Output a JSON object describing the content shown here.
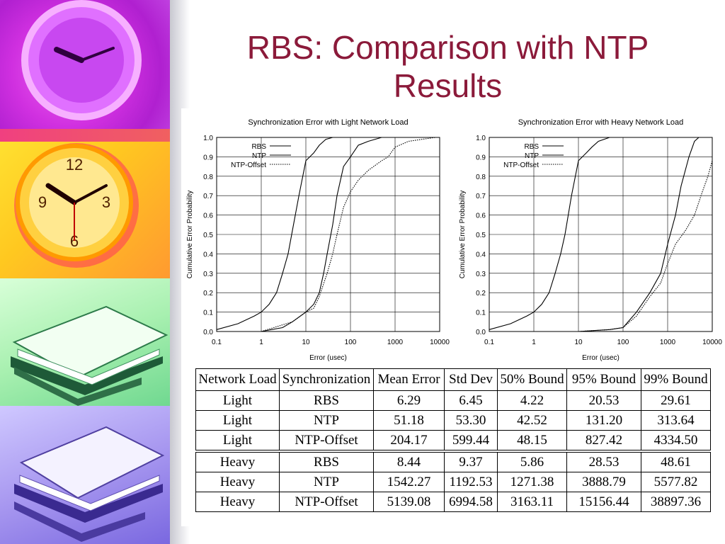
{
  "slide": {
    "title_line1": "RBS: Comparison with NTP",
    "title_line2": "Results"
  },
  "colors": {
    "title": "#8b1a3a"
  },
  "decorations": [
    "clock-purple-icon",
    "clock-orange-icon",
    "papers-green-icon",
    "papers-violet-icon"
  ],
  "chart_data": [
    {
      "type": "line",
      "title": "Synchronization Error with Light Network Load",
      "xlabel": "Error (usec)",
      "ylabel": "Cumulative Error Probability",
      "x_scale": "log",
      "xlim": [
        0.1,
        10000
      ],
      "ylim": [
        0,
        1
      ],
      "grid": true,
      "legend": "top-left",
      "xticks": [
        "0.1",
        "1",
        "10",
        "100",
        "1000",
        "10000"
      ],
      "yticks": [
        "0.0",
        "0.1",
        "0.2",
        "0.3",
        "0.4",
        "0.5",
        "0.6",
        "0.7",
        "0.8",
        "0.9",
        "1.0"
      ],
      "series": [
        {
          "name": "RBS",
          "style": "solid",
          "x": [
            0.1,
            0.3,
            0.7,
            1.0,
            1.5,
            2.2,
            3.0,
            4.0,
            5.0,
            7.0,
            10,
            15,
            20,
            28,
            40
          ],
          "y": [
            0.01,
            0.04,
            0.08,
            0.1,
            0.14,
            0.2,
            0.3,
            0.4,
            0.52,
            0.7,
            0.88,
            0.92,
            0.96,
            0.99,
            1.0
          ]
        },
        {
          "name": "NTP",
          "style": "solid",
          "x": [
            0.1,
            1,
            3,
            5,
            10,
            15,
            20,
            25,
            30,
            40,
            50,
            70,
            100,
            150,
            250,
            500
          ],
          "y": [
            0.0,
            0.0,
            0.02,
            0.05,
            0.1,
            0.14,
            0.2,
            0.3,
            0.4,
            0.55,
            0.7,
            0.85,
            0.9,
            0.96,
            0.98,
            1.0
          ]
        },
        {
          "name": "NTP-Offset",
          "style": "dotted",
          "x": [
            0.1,
            1,
            5,
            10,
            15,
            20,
            30,
            40,
            50,
            70,
            100,
            150,
            250,
            500,
            700,
            1000,
            2000,
            4000,
            8000
          ],
          "y": [
            0.0,
            0.0,
            0.05,
            0.1,
            0.12,
            0.18,
            0.3,
            0.4,
            0.5,
            0.64,
            0.72,
            0.78,
            0.83,
            0.88,
            0.9,
            0.95,
            0.98,
            0.99,
            1.0
          ]
        }
      ]
    },
    {
      "type": "line",
      "title": "Synchronization Error with Heavy Network Load",
      "xlabel": "Error (usec)",
      "ylabel": "Cumulative Error Probability",
      "x_scale": "log",
      "xlim": [
        0.1,
        10000
      ],
      "ylim": [
        0,
        1
      ],
      "grid": true,
      "legend": "top-left",
      "xticks": [
        "0.1",
        "1",
        "10",
        "100",
        "1000",
        "10000"
      ],
      "yticks": [
        "0.0",
        "0.1",
        "0.2",
        "0.3",
        "0.4",
        "0.5",
        "0.6",
        "0.7",
        "0.8",
        "0.9",
        "1.0"
      ],
      "series": [
        {
          "name": "RBS",
          "style": "solid",
          "x": [
            0.1,
            0.3,
            0.7,
            1.0,
            1.5,
            2.2,
            3.0,
            4.0,
            5.0,
            7.0,
            10,
            15,
            20,
            28,
            50
          ],
          "y": [
            0.01,
            0.04,
            0.08,
            0.1,
            0.14,
            0.2,
            0.3,
            0.4,
            0.5,
            0.7,
            0.88,
            0.92,
            0.95,
            0.98,
            1.0
          ]
        },
        {
          "name": "NTP",
          "style": "solid",
          "x": [
            0.1,
            10,
            50,
            100,
            200,
            400,
            700,
            1000,
            1500,
            2000,
            3000,
            4000,
            5000
          ],
          "y": [
            0.0,
            0.0,
            0.01,
            0.02,
            0.1,
            0.2,
            0.3,
            0.45,
            0.6,
            0.75,
            0.9,
            0.98,
            1.0
          ]
        },
        {
          "name": "NTP-Offset",
          "style": "dotted",
          "x": [
            0.1,
            10,
            50,
            100,
            200,
            400,
            700,
            1000,
            1500,
            2500,
            4000,
            6000,
            8000,
            10000
          ],
          "y": [
            0.0,
            0.0,
            0.01,
            0.02,
            0.08,
            0.18,
            0.25,
            0.35,
            0.45,
            0.52,
            0.6,
            0.72,
            0.8,
            0.88
          ]
        }
      ]
    }
  ],
  "table": {
    "headers": [
      "Network Load",
      "Synchronization",
      "Mean Error",
      "Std Dev",
      "50% Bound",
      "95% Bound",
      "99% Bound"
    ],
    "rows": [
      [
        "Light",
        "RBS",
        "6.29",
        "6.45",
        "4.22",
        "20.53",
        "29.61"
      ],
      [
        "Light",
        "NTP",
        "51.18",
        "53.30",
        "42.52",
        "131.20",
        "313.64"
      ],
      [
        "Light",
        "NTP-Offset",
        "204.17",
        "599.44",
        "48.15",
        "827.42",
        "4334.50"
      ],
      [
        "Heavy",
        "RBS",
        "8.44",
        "9.37",
        "5.86",
        "28.53",
        "48.61"
      ],
      [
        "Heavy",
        "NTP",
        "1542.27",
        "1192.53",
        "1271.38",
        "3888.79",
        "5577.82"
      ],
      [
        "Heavy",
        "NTP-Offset",
        "5139.08",
        "6994.58",
        "3163.11",
        "15156.44",
        "38897.36"
      ]
    ]
  }
}
